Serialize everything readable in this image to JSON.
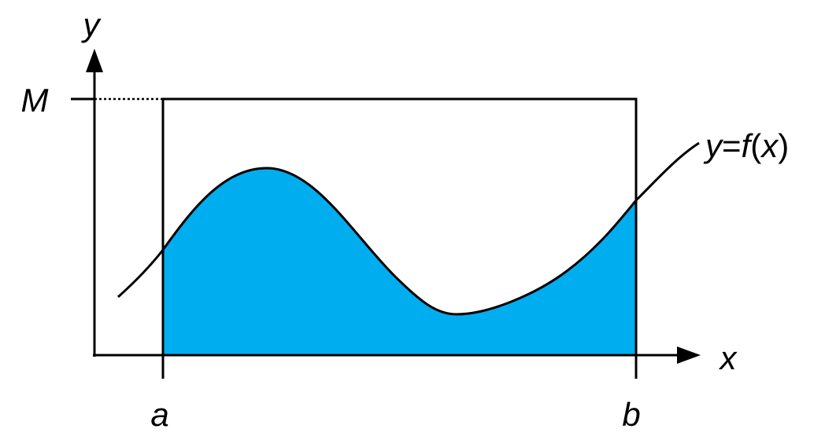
{
  "labels": {
    "y_axis": "y",
    "x_axis": "x",
    "m": "M",
    "a": "a",
    "b": "b",
    "curve": {
      "y": "y",
      "eq": "=",
      "f": "f",
      "lparen": "(",
      "x": "x",
      "rparen": ")"
    }
  },
  "colors": {
    "fill": "#00AEEF",
    "stroke": "#000000"
  }
}
